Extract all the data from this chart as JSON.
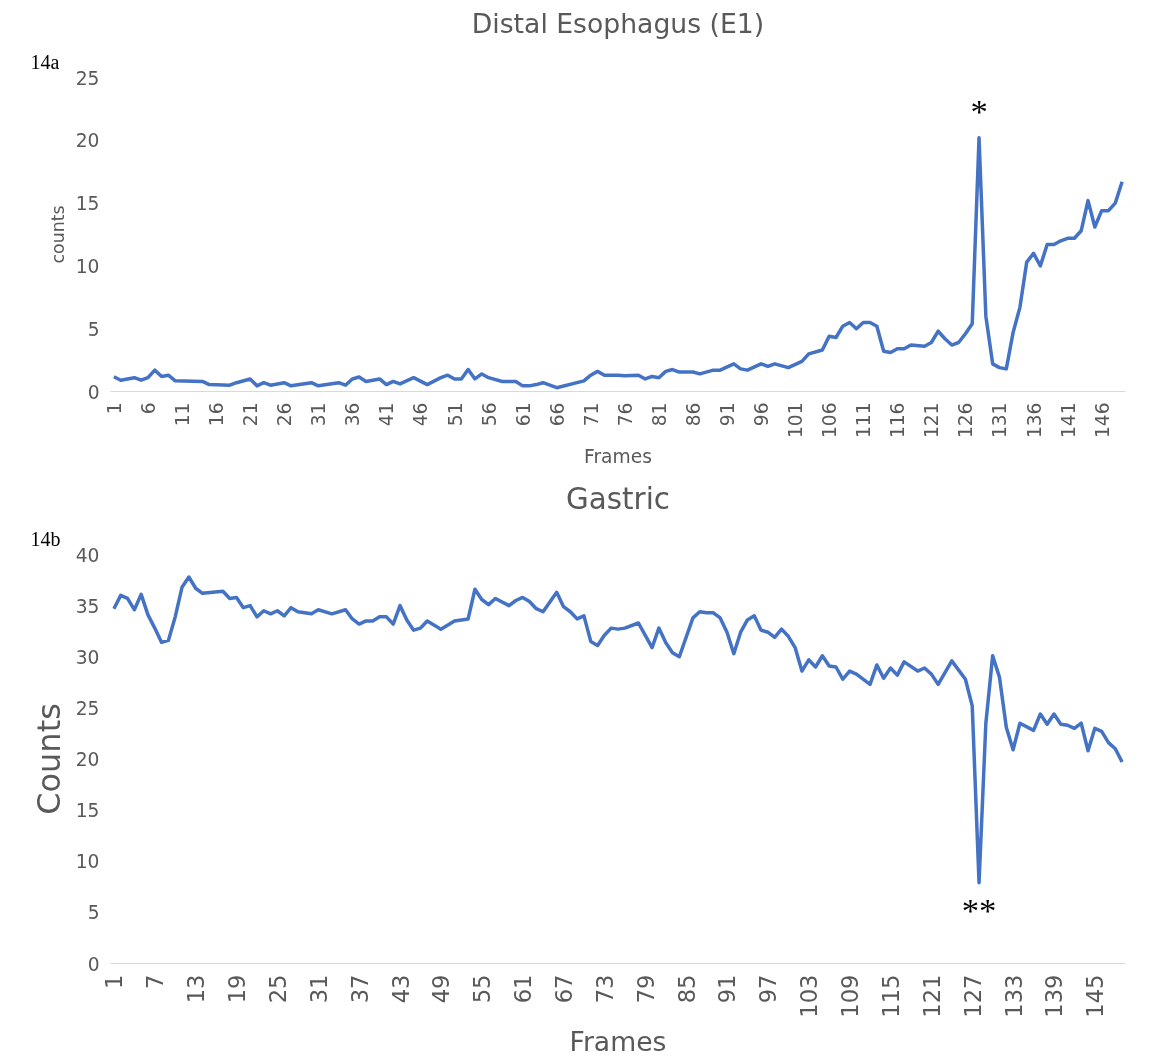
{
  "chart_data": [
    {
      "type": "line",
      "title": "Distal Esophagus (E1)",
      "xlabel": "Frames",
      "ylabel": "counts",
      "annotations": [
        "14a",
        "*"
      ],
      "x": [
        1,
        2,
        4,
        5,
        6,
        7,
        8,
        9,
        10,
        14,
        15,
        18,
        19,
        21,
        22,
        23,
        24,
        26,
        27,
        30,
        31,
        34,
        35,
        36,
        37,
        38,
        40,
        41,
        42,
        43,
        45,
        47,
        49,
        50,
        51,
        52,
        53,
        54,
        55,
        56,
        58,
        60,
        61,
        62,
        63,
        64,
        66,
        70,
        71,
        72,
        73,
        75,
        76,
        78,
        79,
        80,
        81,
        82,
        83,
        84,
        86,
        87,
        89,
        90,
        92,
        93,
        94,
        96,
        97,
        98,
        100,
        102,
        103,
        105,
        106,
        107,
        108,
        109,
        110,
        111,
        112,
        113,
        114,
        115,
        116,
        117,
        118,
        120,
        121,
        122,
        123,
        124,
        125,
        126,
        127,
        128,
        129,
        130,
        131,
        132,
        133,
        134,
        135,
        136,
        137,
        138,
        139,
        140,
        141,
        142,
        143,
        144,
        145,
        146,
        147,
        148,
        149
      ],
      "series": [
        {
          "color": "#4472c4",
          "values": [
            1.17,
            0.9,
            1.1,
            0.9,
            1.1,
            1.7,
            1.2,
            1.3,
            0.85,
            0.8,
            0.55,
            0.5,
            0.7,
            1.0,
            0.45,
            0.7,
            0.5,
            0.7,
            0.45,
            0.7,
            0.45,
            0.7,
            0.5,
            1.0,
            1.15,
            0.8,
            1.0,
            0.55,
            0.8,
            0.6,
            1.1,
            0.55,
            1.1,
            1.3,
            1.0,
            1.0,
            1.75,
            1.0,
            1.4,
            1.1,
            0.8,
            0.8,
            0.45,
            0.45,
            0.55,
            0.7,
            0.3,
            0.85,
            1.3,
            1.6,
            1.3,
            1.3,
            1.25,
            1.3,
            1.0,
            1.2,
            1.1,
            1.6,
            1.75,
            1.55,
            1.55,
            1.4,
            1.7,
            1.7,
            2.2,
            1.8,
            1.7,
            2.2,
            2.0,
            2.2,
            1.9,
            2.4,
            3.0,
            3.3,
            4.4,
            4.3,
            5.2,
            5.5,
            5.0,
            5.5,
            5.5,
            5.2,
            3.2,
            3.1,
            3.4,
            3.4,
            3.7,
            3.6,
            3.9,
            4.8,
            4.2,
            3.7,
            3.9,
            4.6,
            5.4,
            20.2,
            6.0,
            2.2,
            1.9,
            1.8,
            4.7,
            6.7,
            10.3,
            11.0,
            10.0,
            11.7,
            11.7,
            12.0,
            12.2,
            12.2,
            12.8,
            15.2,
            13.1,
            14.4,
            14.4,
            15.0,
            16.7
          ]
        }
      ],
      "xlim": [
        0.5,
        149.5
      ],
      "xticks": [
        1,
        6,
        11,
        16,
        21,
        26,
        31,
        36,
        41,
        46,
        51,
        56,
        61,
        66,
        71,
        76,
        81,
        86,
        91,
        96,
        101,
        106,
        111,
        116,
        121,
        126,
        131,
        136,
        141,
        146
      ],
      "ylim": [
        0,
        25
      ],
      "yticks": [
        0,
        5,
        10,
        15,
        20,
        25
      ],
      "grid": false
    },
    {
      "type": "line",
      "title": "Gastric",
      "xlabel": "Frames",
      "ylabel": "Counts",
      "annotations": [
        "14b",
        "**"
      ],
      "x": [
        1,
        2,
        3,
        4,
        5,
        6,
        7,
        8,
        9,
        10,
        11,
        12,
        13,
        14,
        17,
        18,
        19,
        20,
        21,
        22,
        23,
        24,
        25,
        26,
        27,
        28,
        30,
        31,
        33,
        35,
        36,
        37,
        38,
        39,
        40,
        41,
        42,
        43,
        44,
        45,
        46,
        47,
        49,
        51,
        53,
        54,
        55,
        56,
        57,
        59,
        60,
        61,
        62,
        63,
        64,
        66,
        67,
        68,
        69,
        70,
        71,
        72,
        73,
        74,
        75,
        76,
        78,
        80,
        81,
        82,
        83,
        84,
        86,
        87,
        88,
        89,
        90,
        91,
        92,
        93,
        94,
        95,
        96,
        97,
        98,
        99,
        100,
        101,
        102,
        103,
        104,
        105,
        106,
        107,
        108,
        109,
        110,
        112,
        113,
        114,
        115,
        116,
        117,
        119,
        120,
        121,
        122,
        124,
        126,
        127,
        128,
        129,
        130,
        131,
        132,
        133,
        134,
        136,
        137,
        138,
        139,
        140,
        141,
        142,
        143,
        144,
        145,
        146,
        147,
        148,
        149
      ],
      "series": [
        {
          "color": "#4472c4",
          "values": [
            34.7,
            36.0,
            35.7,
            34.6,
            36.1,
            34.1,
            32.8,
            31.4,
            31.6,
            33.9,
            36.8,
            37.8,
            36.7,
            36.2,
            36.4,
            35.7,
            35.8,
            34.8,
            35.0,
            33.9,
            34.5,
            34.2,
            34.5,
            34.0,
            34.8,
            34.4,
            34.2,
            34.6,
            34.2,
            34.6,
            33.7,
            33.2,
            33.5,
            33.5,
            33.9,
            33.9,
            33.2,
            35.0,
            33.6,
            32.6,
            32.8,
            33.5,
            32.7,
            33.5,
            33.7,
            36.6,
            35.6,
            35.1,
            35.7,
            35.0,
            35.5,
            35.8,
            35.4,
            34.7,
            34.4,
            36.3,
            34.9,
            34.4,
            33.7,
            34.0,
            31.5,
            31.1,
            32.1,
            32.8,
            32.7,
            32.8,
            33.3,
            30.9,
            32.8,
            31.4,
            30.4,
            30.0,
            33.8,
            34.4,
            34.3,
            34.3,
            33.8,
            32.4,
            30.3,
            32.4,
            33.6,
            34.0,
            32.6,
            32.4,
            31.9,
            32.7,
            32.0,
            30.9,
            28.6,
            29.7,
            29.0,
            30.1,
            29.1,
            29.0,
            27.8,
            28.6,
            28.3,
            27.3,
            29.2,
            27.9,
            28.9,
            28.2,
            29.5,
            28.6,
            28.9,
            28.3,
            27.3,
            29.6,
            27.8,
            25.2,
            7.9,
            23.5,
            30.1,
            28.0,
            23.1,
            20.9,
            23.5,
            22.8,
            24.4,
            23.4,
            24.4,
            23.4,
            23.3,
            23.0,
            23.5,
            20.8,
            23.0,
            22.7,
            21.6,
            21.0,
            19.7
          ]
        }
      ],
      "xlim": [
        0.5,
        149.5
      ],
      "xticks": [
        1,
        7,
        13,
        19,
        25,
        31,
        37,
        43,
        49,
        55,
        61,
        67,
        73,
        79,
        85,
        91,
        97,
        103,
        109,
        115,
        121,
        127,
        133,
        139,
        145
      ],
      "ylim": [
        0,
        40
      ],
      "yticks": [
        0,
        5,
        10,
        15,
        20,
        25,
        30,
        35,
        40
      ],
      "grid": false
    }
  ]
}
